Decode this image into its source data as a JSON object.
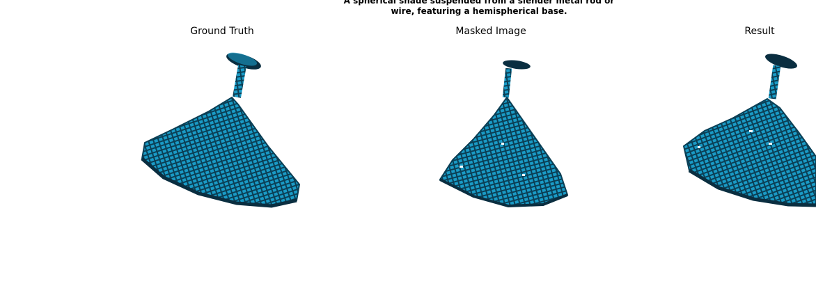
{
  "figure": {
    "suptitle_line1": "A spherical shade suspended from a slender metal rod or",
    "suptitle_line2": "wire, featuring a hemispherical base.",
    "panels": [
      {
        "title": "Ground Truth"
      },
      {
        "title": "Masked Image"
      },
      {
        "title": "Result"
      }
    ]
  },
  "colors": {
    "voxel_face": "#1a9bc6",
    "voxel_edge": "#0b3f55",
    "voxel_dark": "#0a2e40",
    "background": "#ffffff"
  }
}
